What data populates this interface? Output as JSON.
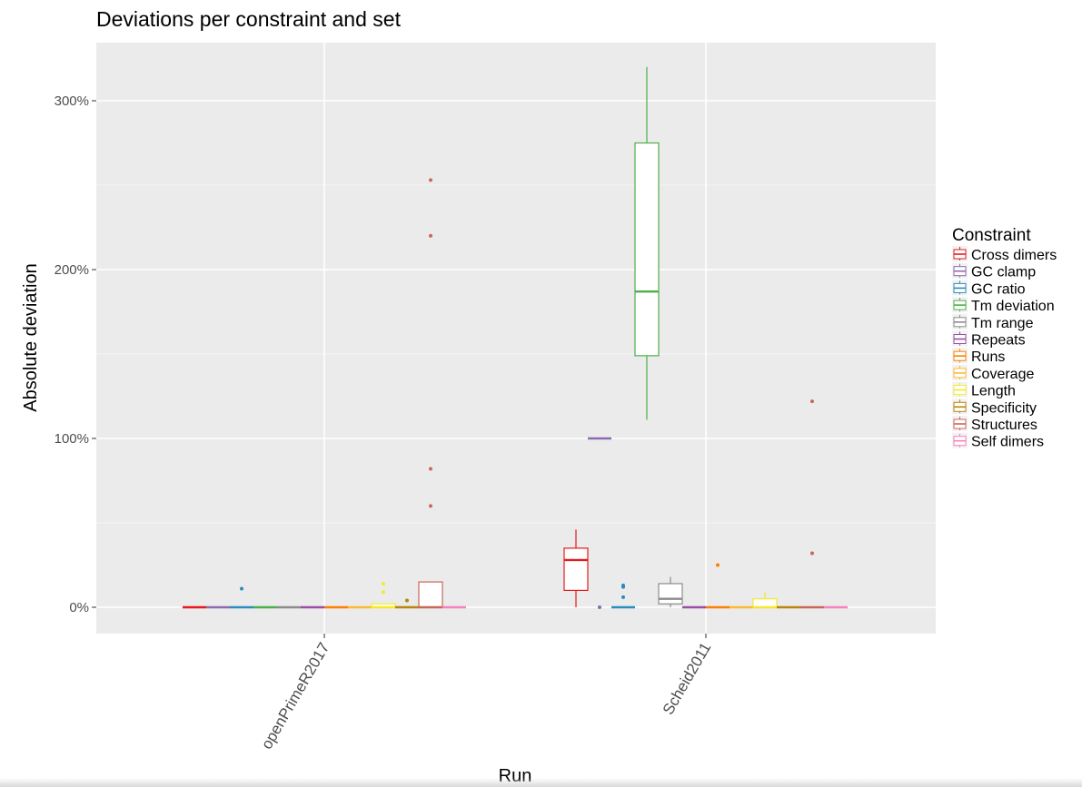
{
  "chart_data": {
    "type": "box",
    "title": "Deviations per constraint and set",
    "xlabel": "Run",
    "ylabel": "Absolute deviation",
    "ylim": [
      -0.15,
      3.3
    ],
    "y_ticks": [
      {
        "value": 0,
        "label": "0%"
      },
      {
        "value": 1,
        "label": "100%"
      },
      {
        "value": 2,
        "label": "200%"
      },
      {
        "value": 3,
        "label": "300%"
      }
    ],
    "categories": [
      "openPrimeR2017",
      "Scheid2011"
    ],
    "grid": true,
    "legend_position": "right",
    "legend_title": "Constraint",
    "series": [
      {
        "name": "Cross dimers",
        "color": "#e41a1c",
        "boxes": [
          {
            "q1": 0,
            "median": 0,
            "q3": 0,
            "lo": 0,
            "hi": 0,
            "outliers": []
          },
          {
            "q1": 0.1,
            "median": 0.28,
            "q3": 0.35,
            "lo": 0,
            "hi": 0.46,
            "outliers": []
          }
        ]
      },
      {
        "name": "GC clamp",
        "color": "#8c6bb1",
        "boxes": [
          {
            "q1": 0,
            "median": 0,
            "q3": 0,
            "lo": 0,
            "hi": 0,
            "outliers": []
          },
          {
            "q1": 1.0,
            "median": 1.0,
            "q3": 1.0,
            "lo": 1.0,
            "hi": 1.0,
            "outliers": [
              0
            ]
          }
        ]
      },
      {
        "name": "GC ratio",
        "color": "#2b8cbe",
        "boxes": [
          {
            "q1": 0,
            "median": 0,
            "q3": 0,
            "lo": 0,
            "hi": 0,
            "outliers": [
              0.11
            ]
          },
          {
            "q1": 0,
            "median": 0,
            "q3": 0,
            "lo": 0,
            "hi": 0,
            "outliers": [
              0.06,
              0.12,
              0.13
            ]
          }
        ]
      },
      {
        "name": "Tm deviation",
        "color": "#4daf4a",
        "boxes": [
          {
            "q1": 0,
            "median": 0,
            "q3": 0,
            "lo": 0,
            "hi": 0,
            "outliers": []
          },
          {
            "q1": 1.49,
            "median": 1.87,
            "q3": 2.75,
            "lo": 1.11,
            "hi": 3.2,
            "outliers": []
          }
        ]
      },
      {
        "name": "Tm range",
        "color": "#8c8c8c",
        "boxes": [
          {
            "q1": 0,
            "median": 0,
            "q3": 0,
            "lo": 0,
            "hi": 0,
            "outliers": []
          },
          {
            "q1": 0.02,
            "median": 0.05,
            "q3": 0.14,
            "lo": 0,
            "hi": 0.18,
            "outliers": []
          }
        ]
      },
      {
        "name": "Repeats",
        "color": "#984ea3",
        "boxes": [
          {
            "q1": 0,
            "median": 0,
            "q3": 0,
            "lo": 0,
            "hi": 0,
            "outliers": []
          },
          {
            "q1": 0,
            "median": 0,
            "q3": 0,
            "lo": 0,
            "hi": 0,
            "outliers": []
          }
        ]
      },
      {
        "name": "Runs",
        "color": "#ff7f00",
        "boxes": [
          {
            "q1": 0,
            "median": 0,
            "q3": 0,
            "lo": 0,
            "hi": 0,
            "outliers": []
          },
          {
            "q1": 0,
            "median": 0,
            "q3": 0,
            "lo": 0,
            "hi": 0,
            "outliers": [
              0.25
            ]
          }
        ]
      },
      {
        "name": "Coverage",
        "color": "#fdb934",
        "boxes": [
          {
            "q1": 0,
            "median": 0,
            "q3": 0,
            "lo": 0,
            "hi": 0,
            "outliers": []
          },
          {
            "q1": 0,
            "median": 0,
            "q3": 0,
            "lo": 0,
            "hi": 0,
            "outliers": []
          }
        ]
      },
      {
        "name": "Length",
        "color": "#f5e92b",
        "boxes": [
          {
            "q1": 0,
            "median": 0,
            "q3": 0.02,
            "lo": 0,
            "hi": 0.02,
            "outliers": [
              0.09,
              0.14
            ]
          },
          {
            "q1": 0,
            "median": 0,
            "q3": 0.05,
            "lo": 0,
            "hi": 0.09,
            "outliers": []
          }
        ]
      },
      {
        "name": "Specificity",
        "color": "#b8860b",
        "boxes": [
          {
            "q1": 0,
            "median": 0,
            "q3": 0,
            "lo": 0,
            "hi": 0,
            "outliers": [
              0.04
            ]
          },
          {
            "q1": 0,
            "median": 0,
            "q3": 0,
            "lo": 0,
            "hi": 0,
            "outliers": []
          }
        ]
      },
      {
        "name": "Structures",
        "color": "#c9675a",
        "boxes": [
          {
            "q1": 0,
            "median": 0,
            "q3": 0.15,
            "lo": 0,
            "hi": 0.15,
            "outliers": [
              0.6,
              0.82,
              2.2,
              2.53
            ]
          },
          {
            "q1": 0,
            "median": 0,
            "q3": 0,
            "lo": 0,
            "hi": 0,
            "outliers": [
              0.32,
              1.22
            ]
          }
        ]
      },
      {
        "name": "Self dimers",
        "color": "#f781bf",
        "boxes": [
          {
            "q1": 0,
            "median": 0,
            "q3": 0,
            "lo": 0,
            "hi": 0,
            "outliers": []
          },
          {
            "q1": 0,
            "median": 0,
            "q3": 0,
            "lo": 0,
            "hi": 0,
            "outliers": []
          }
        ]
      }
    ]
  }
}
